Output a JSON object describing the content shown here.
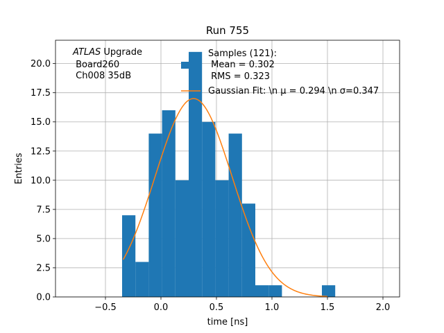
{
  "chart_data": {
    "type": "histogram",
    "title": "Run 755",
    "xlabel": "time [ns]",
    "ylabel": "Entries",
    "xlim": [
      -0.95,
      2.15
    ],
    "ylim": [
      0,
      22
    ],
    "grid": true,
    "xticks": [
      -0.5,
      0.0,
      0.5,
      1.0,
      1.5,
      2.0
    ],
    "xtick_labels": [
      "−0.5",
      "0.0",
      "0.5",
      "1.0",
      "1.5",
      "2.0"
    ],
    "yticks": [
      0.0,
      2.5,
      5.0,
      7.5,
      10.0,
      12.5,
      15.0,
      17.5,
      20.0
    ],
    "ytick_labels": [
      "0.0",
      "2.5",
      "5.0",
      "7.5",
      "10.0",
      "12.5",
      "15.0",
      "17.5",
      "20.0"
    ],
    "bin_edges": [
      -0.35,
      -0.23,
      -0.11,
      0.01,
      0.13,
      0.25,
      0.37,
      0.49,
      0.61,
      0.73,
      0.85,
      0.97,
      1.09,
      1.21,
      1.33,
      1.45,
      1.57
    ],
    "counts": [
      7,
      3,
      14,
      16,
      10,
      21,
      15,
      10,
      14,
      8,
      1,
      1,
      0,
      0,
      0,
      1
    ],
    "bar_color": "#1f77b4",
    "fit": {
      "mu": 0.294,
      "sigma": 0.347,
      "amplitude": 17.0,
      "x_range": [
        -0.34,
        1.5
      ],
      "color": "#ff7f0e"
    },
    "legend": {
      "location": "upper right",
      "entries": [
        {
          "label_lines": [
            "Samples (121):",
            " Mean = 0.302",
            " RMS = 0.323"
          ],
          "kind": "patch",
          "color": "#1f77b4"
        },
        {
          "label_lines": [
            "Gaussian Fit: \\n μ = 0.294 \\n σ=0.347"
          ],
          "kind": "line",
          "color": "#ff7f0e"
        }
      ]
    },
    "annotation": {
      "italic_prefix": "ATLAS",
      "line1_rest": " Upgrade",
      "line2": " Board260",
      "line3": " Ch008 35dB"
    }
  }
}
